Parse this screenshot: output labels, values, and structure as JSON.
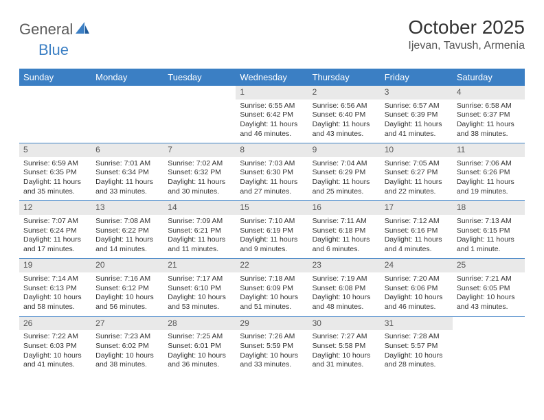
{
  "logo": {
    "word1": "General",
    "word2": "Blue"
  },
  "title": "October 2025",
  "location": "Ijevan, Tavush, Armenia",
  "colors": {
    "header_bg": "#3b7fc4",
    "header_text": "#ffffff",
    "daynum_bg": "#e9e9e9",
    "daynum_text": "#555555",
    "cell_text": "#333333",
    "border": "#3b7fc4",
    "background": "#ffffff"
  },
  "fonts": {
    "title_size_pt": 21,
    "location_size_pt": 12,
    "dayheader_size_pt": 10,
    "daynum_size_pt": 9,
    "cell_size_pt": 8
  },
  "weekdays": [
    "Sunday",
    "Monday",
    "Tuesday",
    "Wednesday",
    "Thursday",
    "Friday",
    "Saturday"
  ],
  "weeks": [
    [
      null,
      null,
      null,
      {
        "n": "1",
        "sunrise": "6:55 AM",
        "sunset": "6:42 PM",
        "daylight": "11 hours and 46 minutes."
      },
      {
        "n": "2",
        "sunrise": "6:56 AM",
        "sunset": "6:40 PM",
        "daylight": "11 hours and 43 minutes."
      },
      {
        "n": "3",
        "sunrise": "6:57 AM",
        "sunset": "6:39 PM",
        "daylight": "11 hours and 41 minutes."
      },
      {
        "n": "4",
        "sunrise": "6:58 AM",
        "sunset": "6:37 PM",
        "daylight": "11 hours and 38 minutes."
      }
    ],
    [
      {
        "n": "5",
        "sunrise": "6:59 AM",
        "sunset": "6:35 PM",
        "daylight": "11 hours and 35 minutes."
      },
      {
        "n": "6",
        "sunrise": "7:01 AM",
        "sunset": "6:34 PM",
        "daylight": "11 hours and 33 minutes."
      },
      {
        "n": "7",
        "sunrise": "7:02 AM",
        "sunset": "6:32 PM",
        "daylight": "11 hours and 30 minutes."
      },
      {
        "n": "8",
        "sunrise": "7:03 AM",
        "sunset": "6:30 PM",
        "daylight": "11 hours and 27 minutes."
      },
      {
        "n": "9",
        "sunrise": "7:04 AM",
        "sunset": "6:29 PM",
        "daylight": "11 hours and 25 minutes."
      },
      {
        "n": "10",
        "sunrise": "7:05 AM",
        "sunset": "6:27 PM",
        "daylight": "11 hours and 22 minutes."
      },
      {
        "n": "11",
        "sunrise": "7:06 AM",
        "sunset": "6:26 PM",
        "daylight": "11 hours and 19 minutes."
      }
    ],
    [
      {
        "n": "12",
        "sunrise": "7:07 AM",
        "sunset": "6:24 PM",
        "daylight": "11 hours and 17 minutes."
      },
      {
        "n": "13",
        "sunrise": "7:08 AM",
        "sunset": "6:22 PM",
        "daylight": "11 hours and 14 minutes."
      },
      {
        "n": "14",
        "sunrise": "7:09 AM",
        "sunset": "6:21 PM",
        "daylight": "11 hours and 11 minutes."
      },
      {
        "n": "15",
        "sunrise": "7:10 AM",
        "sunset": "6:19 PM",
        "daylight": "11 hours and 9 minutes."
      },
      {
        "n": "16",
        "sunrise": "7:11 AM",
        "sunset": "6:18 PM",
        "daylight": "11 hours and 6 minutes."
      },
      {
        "n": "17",
        "sunrise": "7:12 AM",
        "sunset": "6:16 PM",
        "daylight": "11 hours and 4 minutes."
      },
      {
        "n": "18",
        "sunrise": "7:13 AM",
        "sunset": "6:15 PM",
        "daylight": "11 hours and 1 minute."
      }
    ],
    [
      {
        "n": "19",
        "sunrise": "7:14 AM",
        "sunset": "6:13 PM",
        "daylight": "10 hours and 58 minutes."
      },
      {
        "n": "20",
        "sunrise": "7:16 AM",
        "sunset": "6:12 PM",
        "daylight": "10 hours and 56 minutes."
      },
      {
        "n": "21",
        "sunrise": "7:17 AM",
        "sunset": "6:10 PM",
        "daylight": "10 hours and 53 minutes."
      },
      {
        "n": "22",
        "sunrise": "7:18 AM",
        "sunset": "6:09 PM",
        "daylight": "10 hours and 51 minutes."
      },
      {
        "n": "23",
        "sunrise": "7:19 AM",
        "sunset": "6:08 PM",
        "daylight": "10 hours and 48 minutes."
      },
      {
        "n": "24",
        "sunrise": "7:20 AM",
        "sunset": "6:06 PM",
        "daylight": "10 hours and 46 minutes."
      },
      {
        "n": "25",
        "sunrise": "7:21 AM",
        "sunset": "6:05 PM",
        "daylight": "10 hours and 43 minutes."
      }
    ],
    [
      {
        "n": "26",
        "sunrise": "7:22 AM",
        "sunset": "6:03 PM",
        "daylight": "10 hours and 41 minutes."
      },
      {
        "n": "27",
        "sunrise": "7:23 AM",
        "sunset": "6:02 PM",
        "daylight": "10 hours and 38 minutes."
      },
      {
        "n": "28",
        "sunrise": "7:25 AM",
        "sunset": "6:01 PM",
        "daylight": "10 hours and 36 minutes."
      },
      {
        "n": "29",
        "sunrise": "7:26 AM",
        "sunset": "5:59 PM",
        "daylight": "10 hours and 33 minutes."
      },
      {
        "n": "30",
        "sunrise": "7:27 AM",
        "sunset": "5:58 PM",
        "daylight": "10 hours and 31 minutes."
      },
      {
        "n": "31",
        "sunrise": "7:28 AM",
        "sunset": "5:57 PM",
        "daylight": "10 hours and 28 minutes."
      },
      null
    ]
  ],
  "labels": {
    "sunrise": "Sunrise:",
    "sunset": "Sunset:",
    "daylight": "Daylight:"
  }
}
